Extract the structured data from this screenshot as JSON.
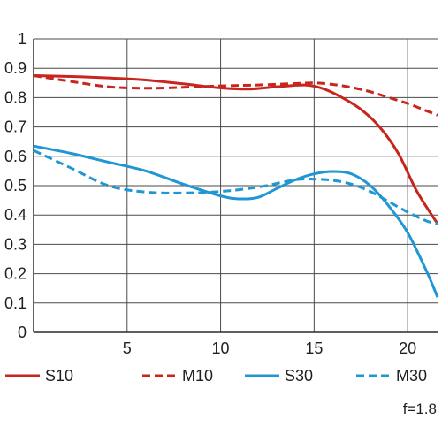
{
  "chart_data": {
    "type": "line",
    "title": "",
    "xlabel": "",
    "ylabel": "",
    "xlim": [
      0,
      21.6
    ],
    "ylim": [
      0,
      1
    ],
    "grid": true,
    "legend_placement": "bottom",
    "x_ticks": [
      {
        "value": 5,
        "label": "5"
      },
      {
        "value": 10,
        "label": "10"
      },
      {
        "value": 15,
        "label": "15"
      },
      {
        "value": 20,
        "label": "20"
      }
    ],
    "y_ticks": [
      {
        "value": 0,
        "label": "0"
      },
      {
        "value": 0.1,
        "label": "0.1"
      },
      {
        "value": 0.2,
        "label": "0.2"
      },
      {
        "value": 0.3,
        "label": "0.3"
      },
      {
        "value": 0.4,
        "label": "0.4"
      },
      {
        "value": 0.5,
        "label": "0.5"
      },
      {
        "value": 0.6,
        "label": "0.6"
      },
      {
        "value": 0.7,
        "label": "0.7"
      },
      {
        "value": 0.8,
        "label": "0.8"
      },
      {
        "value": 0.9,
        "label": "0.9"
      },
      {
        "value": 1,
        "label": "1"
      }
    ],
    "series": [
      {
        "name": "S10",
        "color": "#c8251e",
        "dashed": false,
        "points": [
          [
            0,
            0.875
          ],
          [
            2,
            0.872
          ],
          [
            4,
            0.867
          ],
          [
            6,
            0.86
          ],
          [
            8,
            0.847
          ],
          [
            10,
            0.833
          ],
          [
            11.5,
            0.829
          ],
          [
            13,
            0.837
          ],
          [
            14.5,
            0.843
          ],
          [
            15.5,
            0.83
          ],
          [
            16.5,
            0.8
          ],
          [
            17.5,
            0.76
          ],
          [
            18.5,
            0.7
          ],
          [
            19.5,
            0.61
          ],
          [
            20.5,
            0.48
          ],
          [
            21.6,
            0.37
          ]
        ]
      },
      {
        "name": "M10",
        "color": "#c8251e",
        "dashed": true,
        "points": [
          [
            0,
            0.875
          ],
          [
            2,
            0.855
          ],
          [
            4,
            0.837
          ],
          [
            6,
            0.832
          ],
          [
            8,
            0.835
          ],
          [
            10,
            0.84
          ],
          [
            12,
            0.843
          ],
          [
            14,
            0.848
          ],
          [
            15,
            0.85
          ],
          [
            16,
            0.845
          ],
          [
            17,
            0.835
          ],
          [
            18,
            0.82
          ],
          [
            19,
            0.8
          ],
          [
            20,
            0.78
          ],
          [
            21,
            0.755
          ],
          [
            21.6,
            0.74
          ]
        ]
      },
      {
        "name": "S30",
        "color": "#1f97d4",
        "dashed": false,
        "points": [
          [
            0,
            0.635
          ],
          [
            2,
            0.61
          ],
          [
            4,
            0.58
          ],
          [
            6,
            0.55
          ],
          [
            8,
            0.505
          ],
          [
            10,
            0.465
          ],
          [
            11,
            0.455
          ],
          [
            12,
            0.46
          ],
          [
            13,
            0.49
          ],
          [
            14,
            0.52
          ],
          [
            15,
            0.54
          ],
          [
            16,
            0.548
          ],
          [
            17,
            0.54
          ],
          [
            18,
            0.5
          ],
          [
            19,
            0.43
          ],
          [
            20,
            0.34
          ],
          [
            21,
            0.21
          ],
          [
            21.6,
            0.12
          ]
        ]
      },
      {
        "name": "M30",
        "color": "#1f97d4",
        "dashed": true,
        "points": [
          [
            0,
            0.62
          ],
          [
            2,
            0.56
          ],
          [
            4,
            0.5
          ],
          [
            6,
            0.478
          ],
          [
            8,
            0.475
          ],
          [
            10,
            0.48
          ],
          [
            12,
            0.495
          ],
          [
            14,
            0.52
          ],
          [
            15,
            0.522
          ],
          [
            16,
            0.518
          ],
          [
            17,
            0.505
          ],
          [
            18,
            0.48
          ],
          [
            19,
            0.445
          ],
          [
            20,
            0.41
          ],
          [
            21,
            0.38
          ],
          [
            21.6,
            0.37
          ]
        ]
      }
    ],
    "annotations": [
      {
        "text": "f=1.8"
      }
    ]
  }
}
